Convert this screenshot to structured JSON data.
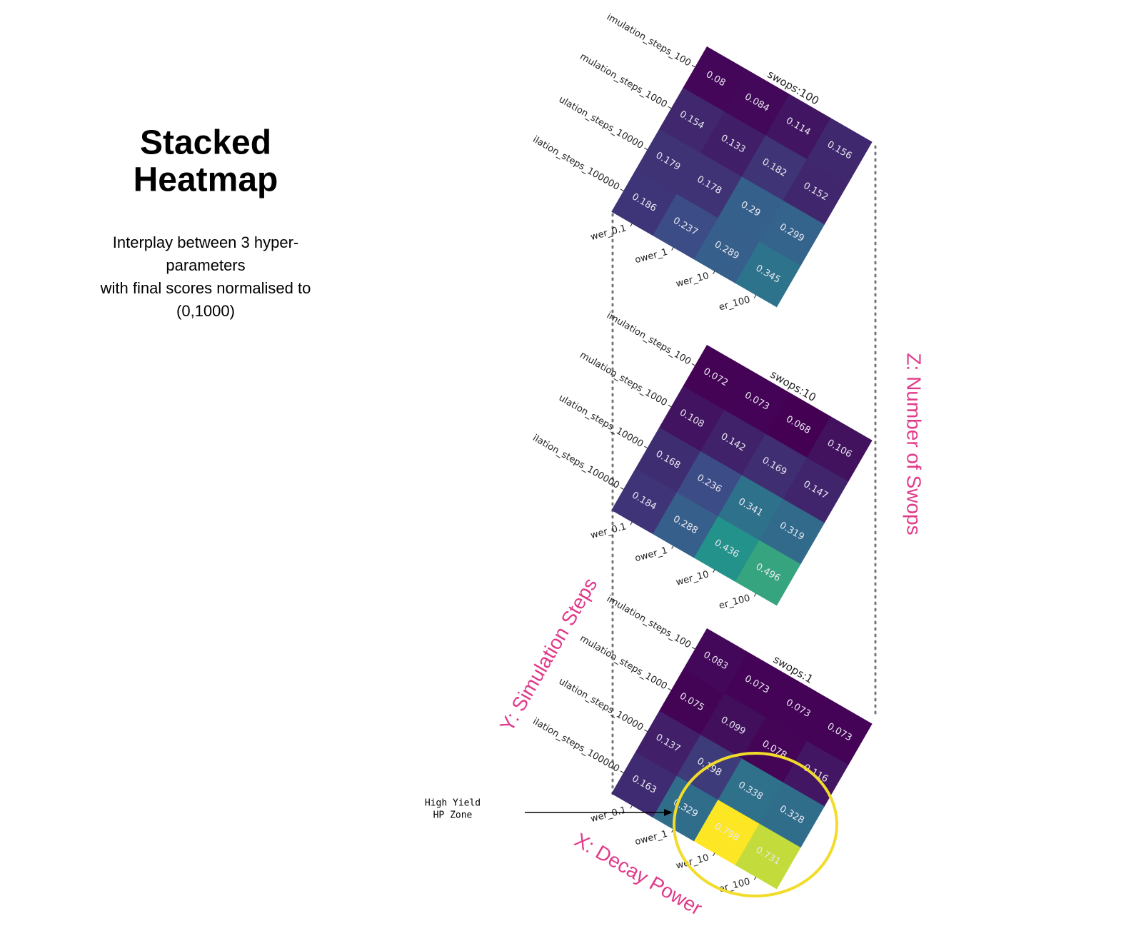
{
  "slide": {
    "title_lines": [
      "Stacked",
      "Heatmap"
    ],
    "subtitle_lines": [
      "Interplay between 3 hyper-",
      "parameters",
      "with final scores normalised to",
      "(0,1000)"
    ]
  },
  "annotations": {
    "z_axis": "Z: Number of Swops",
    "y_axis": "Y: Simulation Steps",
    "x_axis": "X: Decay Power",
    "zone_lines": [
      "High Yield",
      "HP Zone"
    ]
  },
  "chart_data": [
    {
      "type": "heatmap",
      "title": "swops:100",
      "colormap": "viridis",
      "row_labels": [
        "imulation_steps_100",
        "mulation_steps_1000",
        "ulation_steps_10000",
        "ilation_steps_100000"
      ],
      "col_labels": [
        "wer_0.1",
        "ower_1",
        "wer_10",
        "er_100"
      ],
      "values": [
        [
          0.08,
          0.084,
          0.114,
          0.156
        ],
        [
          0.154,
          0.133,
          0.182,
          0.152
        ],
        [
          0.179,
          0.178,
          0.29,
          0.299
        ],
        [
          0.186,
          0.237,
          0.289,
          0.345
        ]
      ]
    },
    {
      "type": "heatmap",
      "title": "swops:10",
      "colormap": "viridis",
      "row_labels": [
        "imulation_steps_100",
        "mulation_steps_1000",
        "ulation_steps_10000",
        "ilation_steps_100000"
      ],
      "col_labels": [
        "wer_0.1",
        "ower_1",
        "wer_10",
        "er_100"
      ],
      "values": [
        [
          0.072,
          0.073,
          0.068,
          0.106
        ],
        [
          0.108,
          0.142,
          0.169,
          0.147
        ],
        [
          0.168,
          0.236,
          0.341,
          0.319
        ],
        [
          0.184,
          0.288,
          0.436,
          0.496
        ]
      ]
    },
    {
      "type": "heatmap",
      "title": "swops:1",
      "colormap": "viridis",
      "row_labels": [
        "imulation_steps_100",
        "mulation_steps_1000",
        "ulation_steps_10000",
        "ilation_steps_100000"
      ],
      "col_labels": [
        "wer_0.1",
        "ower_1",
        "wer_10",
        "er_100"
      ],
      "values": [
        [
          0.083,
          0.073,
          0.073,
          0.073
        ],
        [
          0.075,
          0.099,
          0.078,
          0.116
        ],
        [
          0.137,
          0.198,
          0.338,
          0.328
        ],
        [
          0.163,
          0.329,
          0.798,
          0.731
        ]
      ]
    }
  ]
}
